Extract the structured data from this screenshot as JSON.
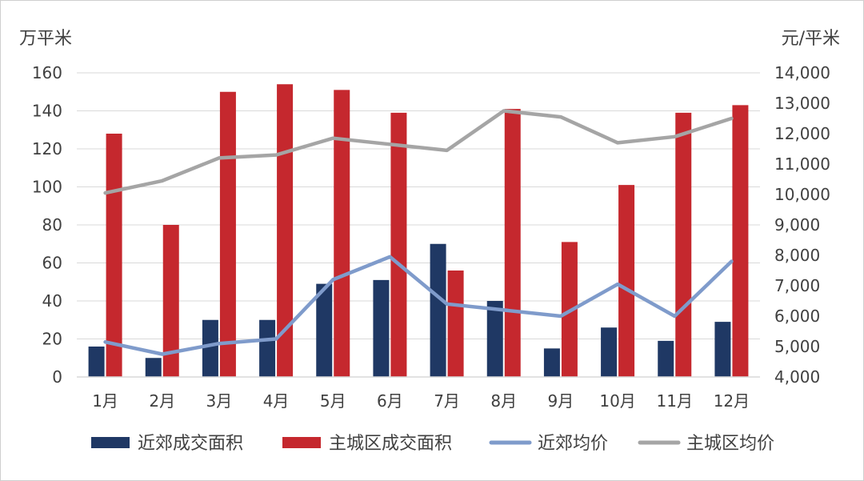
{
  "chart_data": {
    "type": "bar",
    "left_axis_unit": "万平米",
    "right_axis_unit": "元/平米",
    "categories": [
      "1月",
      "2月",
      "3月",
      "4月",
      "5月",
      "6月",
      "7月",
      "8月",
      "9月",
      "10月",
      "11月",
      "12月"
    ],
    "left_ylim": [
      0,
      160
    ],
    "left_ticks": [
      0,
      20,
      40,
      60,
      80,
      100,
      120,
      140,
      160
    ],
    "left_tick_labels": [
      "0",
      "20",
      "40",
      "60",
      "80",
      "100",
      "120",
      "140",
      "160"
    ],
    "right_ylim": [
      4000,
      14000
    ],
    "right_ticks": [
      4000,
      5000,
      6000,
      7000,
      8000,
      9000,
      10000,
      11000,
      12000,
      13000,
      14000
    ],
    "right_tick_labels": [
      "4,000",
      "5,000",
      "6,000",
      "7,000",
      "8,000",
      "9,000",
      "10,000",
      "11,000",
      "12,000",
      "13,000",
      "14,000"
    ],
    "grid": true,
    "legend_position": "bottom",
    "series": [
      {
        "name": "近郊成交面积",
        "kind": "bar",
        "axis": "left",
        "color": "#1f3864",
        "values": [
          16,
          10,
          30,
          30,
          49,
          51,
          70,
          40,
          15,
          26,
          19,
          29
        ]
      },
      {
        "name": "主城区成交面积",
        "kind": "bar",
        "axis": "left",
        "color": "#c5282e",
        "values": [
          128,
          80,
          150,
          154,
          151,
          139,
          56,
          141,
          71,
          101,
          139,
          143
        ]
      },
      {
        "name": "近郊均价",
        "kind": "line",
        "axis": "right",
        "color": "#7f9bcb",
        "values": [
          5150,
          4750,
          5100,
          5250,
          7200,
          7950,
          6400,
          6200,
          6000,
          7050,
          6000,
          7800
        ]
      },
      {
        "name": "主城区均价",
        "kind": "line",
        "axis": "right",
        "color": "#a5a5a5",
        "values": [
          10050,
          10450,
          11200,
          11300,
          11850,
          11650,
          11450,
          12750,
          12550,
          11700,
          11900,
          12500
        ]
      }
    ]
  }
}
